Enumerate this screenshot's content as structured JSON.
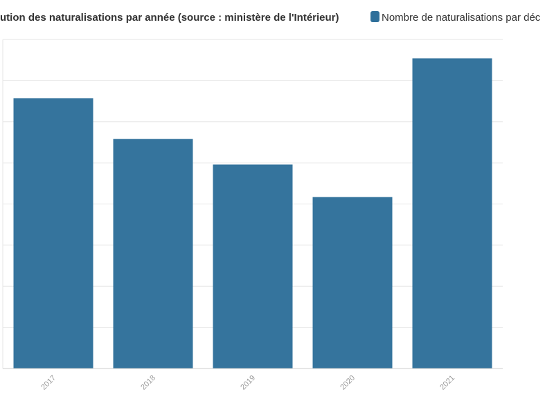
{
  "chart_data": {
    "type": "bar",
    "title": "Évolution des naturalisations par année (source : ministère de l'Intérieur)",
    "visible_title": "ution des naturalisations par année (source : ministère de l'Intérieur)",
    "legend": {
      "entries": [
        {
          "name": "Nombre de naturalisations par décret",
          "visible_text": "Nombre de naturalisations par déc",
          "color": "#2e6f9a"
        }
      ],
      "placement": "top-right"
    },
    "categories": [
      "2017",
      "2018",
      "2019",
      "2020",
      "2021"
    ],
    "series": [
      {
        "name": "Nombre de naturalisations par décret",
        "values": [
          65.7,
          55.8,
          49.6,
          41.7,
          75.4
        ],
        "color": "#2e6f9a"
      }
    ],
    "ylim": [
      0,
      80
    ],
    "grid": true,
    "xlabel": "",
    "ylabel": ""
  }
}
